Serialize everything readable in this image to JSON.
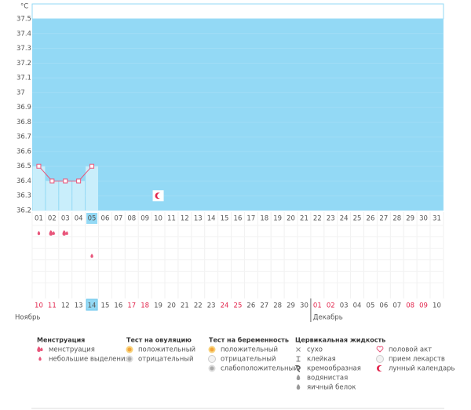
{
  "chart_data": {
    "type": "line",
    "y_label": "°C",
    "categories": [
      "01",
      "02",
      "03",
      "04",
      "05",
      "06",
      "07",
      "08",
      "09",
      "10",
      "11",
      "12",
      "13",
      "14",
      "15",
      "16",
      "17",
      "18",
      "19",
      "20",
      "21",
      "22",
      "23",
      "24",
      "25",
      "26",
      "27",
      "28",
      "29",
      "30",
      "31"
    ],
    "values": [
      36.5,
      36.4,
      36.4,
      36.4,
      36.5,
      null,
      null,
      null,
      null,
      null,
      null,
      null,
      null,
      null,
      null,
      null,
      null,
      null,
      null,
      null,
      null,
      null,
      null,
      null,
      null,
      null,
      null,
      null,
      null,
      null,
      null
    ],
    "color": "#e8557a",
    "fill": "#93d9f5",
    "under_fill": "#c9eefb",
    "ylim": [
      36.2,
      37.5
    ],
    "yticks": [
      36.2,
      36.3,
      36.4,
      36.5,
      36.6,
      36.7,
      36.8,
      36.9,
      37,
      37.1,
      37.2,
      37.3,
      37.4,
      37.5
    ],
    "selected": "05",
    "lunar": [
      null,
      null,
      null,
      null,
      null,
      null,
      null,
      null,
      null,
      true,
      null,
      null,
      null,
      null,
      null,
      null,
      null,
      null,
      null,
      null,
      null,
      null,
      null,
      null,
      null,
      null,
      null,
      null,
      null,
      null,
      null
    ]
  },
  "symptom_rows": [
    [
      "drop",
      "drop2",
      "drop2",
      null,
      null,
      null,
      null,
      null,
      null,
      null,
      null,
      null,
      null,
      null,
      null,
      null,
      null,
      null,
      null,
      null,
      null,
      null,
      null,
      null,
      null,
      null,
      null,
      null,
      null,
      null,
      null
    ],
    [
      null,
      null,
      null,
      null,
      "drop",
      null,
      null,
      null,
      null,
      null,
      null,
      null,
      null,
      null,
      null,
      null,
      null,
      null,
      null,
      null,
      null,
      null,
      null,
      null,
      null,
      null,
      null,
      null,
      null,
      null,
      null
    ]
  ],
  "cycle": {
    "selected": "14",
    "months": [
      {
        "name": "Ноябрь",
        "days": [
          {
            "label": "10",
            "red": true
          },
          {
            "label": "11",
            "red": true
          },
          {
            "label": "12"
          },
          {
            "label": "13"
          },
          {
            "label": "14"
          },
          {
            "label": "15"
          },
          {
            "label": "16"
          },
          {
            "label": "17",
            "red": true
          },
          {
            "label": "18",
            "red": true
          },
          {
            "label": "19"
          },
          {
            "label": "20"
          },
          {
            "label": "21"
          },
          {
            "label": "22"
          },
          {
            "label": "23"
          },
          {
            "label": "24",
            "red": true
          },
          {
            "label": "25",
            "red": true
          },
          {
            "label": "26"
          },
          {
            "label": "27"
          },
          {
            "label": "28"
          },
          {
            "label": "29"
          },
          {
            "label": "30"
          }
        ]
      },
      {
        "name": "Декабрь",
        "days": [
          {
            "label": "01",
            "red": true
          },
          {
            "label": "02",
            "red": true
          },
          {
            "label": "03"
          },
          {
            "label": "04"
          },
          {
            "label": "05"
          },
          {
            "label": "06"
          },
          {
            "label": "07"
          },
          {
            "label": "08",
            "red": true
          },
          {
            "label": "09",
            "red": true
          },
          {
            "label": "10"
          }
        ]
      }
    ]
  },
  "legend": [
    {
      "title": "Менструация",
      "items": [
        {
          "label": "менструация",
          "icon": "drop2"
        },
        {
          "label": "небольшие выделения",
          "icon": "drop"
        }
      ]
    },
    {
      "title": "Тест на овуляцию",
      "items": [
        {
          "label": "положительный",
          "icon": "sun"
        },
        {
          "label": "отрицательный",
          "icon": "gray"
        }
      ]
    },
    {
      "title": "Тест на беременность",
      "items": [
        {
          "label": "положительный",
          "icon": "sun"
        },
        {
          "label": "отрицательный",
          "icon": "white"
        },
        {
          "label": "слабоположительный",
          "icon": "gray"
        }
      ]
    },
    {
      "title": "Цервикальная жидкость",
      "items": [
        {
          "label": "сухо",
          "icon": "x"
        },
        {
          "label": "клейкая",
          "icon": "t"
        },
        {
          "label": "кремообразная",
          "icon": "swirl"
        },
        {
          "label": "водянистая",
          "icon": "gdrop"
        },
        {
          "label": "яичный белок",
          "icon": "gdrop"
        }
      ]
    },
    {
      "items": [
        {
          "label": "половой акт",
          "icon": "heart"
        },
        {
          "label": "прием лекарств",
          "icon": "white"
        },
        {
          "label": "лунный календарь",
          "icon": "moon"
        }
      ]
    }
  ]
}
